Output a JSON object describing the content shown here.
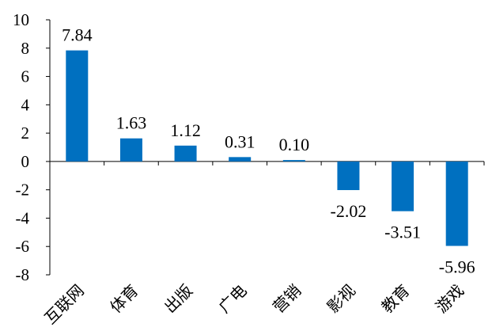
{
  "chart_data": {
    "type": "bar",
    "title": "",
    "xlabel": "",
    "ylabel": "",
    "categories": [
      "互联网",
      "体育",
      "出版",
      "广电",
      "营销",
      "影视",
      "教育",
      "游戏"
    ],
    "values": [
      7.84,
      1.63,
      1.12,
      0.31,
      0.1,
      -2.02,
      -3.51,
      -5.96
    ],
    "data_labels": [
      "7.84",
      "1.63",
      "1.12",
      "0.31",
      "0.10",
      "-2.02",
      "-3.51",
      "-5.96"
    ],
    "ylim": [
      -8,
      10
    ],
    "yticks": [
      10,
      8,
      6,
      4,
      2,
      0,
      -2,
      -4,
      -6,
      -8
    ],
    "grid": false,
    "legend": "none",
    "bar_color": "#0070C0"
  }
}
